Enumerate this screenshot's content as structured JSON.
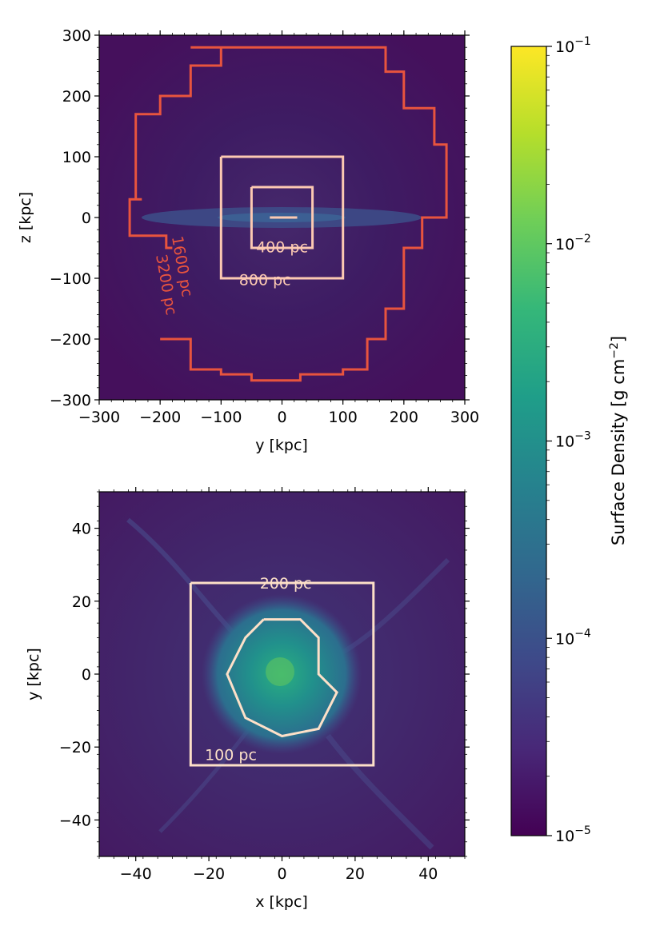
{
  "chart_data": [
    {
      "type": "heatmap",
      "panel": "top",
      "xlabel": "y  [kpc]",
      "ylabel": "z  [kpc]",
      "xlim": [
        -300,
        300
      ],
      "ylim": [
        -300,
        300
      ],
      "xticks": [
        -300,
        -200,
        -100,
        0,
        100,
        200,
        300
      ],
      "yticks": [
        -300,
        -200,
        -100,
        0,
        100,
        200,
        300
      ],
      "xtick_labels": [
        "−300",
        "−200",
        "−100",
        "0",
        "100",
        "200",
        "300"
      ],
      "ytick_labels": [
        "−300",
        "−200",
        "−100",
        "0",
        "100",
        "200",
        "300"
      ],
      "refinement_boundaries": [
        {
          "label": "400 pc",
          "color": "#fcc9b2",
          "points": [
            [
              -50,
              50
            ],
            [
              50,
              50
            ],
            [
              50,
              -50
            ],
            [
              -50,
              -50
            ],
            [
              -50,
              50
            ]
          ],
          "label_at": [
            0,
            -48
          ]
        },
        {
          "label": "800 pc",
          "color": "#fcc9b2",
          "points": [
            [
              -100,
              100
            ],
            [
              100,
              100
            ],
            [
              100,
              -100
            ],
            [
              -100,
              -100
            ],
            [
              -100,
              100
            ]
          ],
          "label_at": [
            -28,
            -102
          ]
        },
        {
          "label": "1600 pc",
          "color": "#e8543e",
          "label_at": [
            -172,
            -82
          ],
          "label_rotation": 80,
          "points": [
            [
              -150,
              280
            ],
            [
              -100,
              280
            ],
            [
              -100,
              280
            ],
            [
              170,
              280
            ],
            [
              170,
              240
            ],
            [
              200,
              240
            ],
            [
              200,
              180
            ],
            [
              250,
              180
            ],
            [
              250,
              120
            ],
            [
              270,
              120
            ],
            [
              270,
              0
            ],
            [
              230,
              0
            ],
            [
              230,
              -50
            ],
            [
              200,
              -50
            ],
            [
              200,
              -150
            ],
            [
              170,
              -150
            ],
            [
              170,
              -200
            ],
            [
              140,
              -200
            ],
            [
              140,
              -250
            ],
            [
              100,
              -250
            ],
            [
              100,
              -258
            ],
            [
              30,
              -258
            ],
            [
              30,
              -268
            ],
            [
              -50,
              -268
            ],
            [
              -50,
              -258
            ],
            [
              -100,
              -258
            ],
            [
              -100,
              -250
            ],
            [
              -150,
              -250
            ],
            [
              -150,
              -200
            ],
            [
              -200,
              -200
            ]
          ]
        },
        {
          "label": "3200 pc",
          "color": "#e8543e",
          "label_at": [
            -198,
            -112
          ],
          "label_rotation": 80,
          "points": [
            [
              -100,
              280
            ],
            [
              -100,
              250
            ],
            [
              -150,
              250
            ],
            [
              -150,
              200
            ],
            [
              -200,
              200
            ],
            [
              -200,
              170
            ],
            [
              -240,
              170
            ],
            [
              -240,
              30
            ],
            [
              -230,
              30
            ],
            [
              -230,
              30
            ],
            [
              -250,
              30
            ],
            [
              -250,
              -30
            ],
            [
              -190,
              -30
            ],
            [
              -190,
              -50
            ],
            [
              -180,
              -50
            ]
          ]
        },
        {
          "label": "",
          "color": "#fcc9b2",
          "points": [
            [
              -20,
              0
            ],
            [
              25,
              0
            ]
          ]
        }
      ]
    },
    {
      "type": "heatmap",
      "panel": "bottom",
      "xlabel": "x  [kpc]",
      "ylabel": "y  [kpc]",
      "xlim": [
        -50,
        50
      ],
      "ylim": [
        -50,
        50
      ],
      "xticks": [
        -40,
        -20,
        0,
        20,
        40
      ],
      "yticks": [
        -40,
        -20,
        0,
        20,
        40
      ],
      "xtick_labels": [
        "−40",
        "−20",
        "0",
        "20",
        "40"
      ],
      "ytick_labels": [
        "−40",
        "−20",
        "0",
        "20",
        "40"
      ],
      "refinement_boundaries": [
        {
          "label": "200 pc",
          "color": "#fde0c8",
          "points": [
            [
              -25,
              25
            ],
            [
              25,
              25
            ],
            [
              25,
              -25
            ],
            [
              -25,
              -25
            ],
            [
              -25,
              25
            ]
          ],
          "label_at": [
            1,
            25
          ]
        },
        {
          "label": "100 pc",
          "color": "#fde0c8",
          "points": [
            [
              -5,
              15
            ],
            [
              5,
              15
            ],
            [
              10,
              10
            ],
            [
              10,
              0
            ],
            [
              15,
              -5
            ],
            [
              10,
              -15
            ],
            [
              0,
              -17
            ],
            [
              -10,
              -12
            ],
            [
              -15,
              0
            ],
            [
              -10,
              10
            ],
            [
              -5,
              15
            ]
          ],
          "label_at": [
            -14,
            -22
          ]
        }
      ]
    }
  ],
  "colorbar": {
    "label": "Surface Density  [g cm",
    "label_exponent": "−2",
    "label_close": "]",
    "scale": "log",
    "range": [
      1e-05,
      0.1
    ],
    "tick_values": [
      1e-05,
      0.0001,
      0.001,
      0.01,
      0.1
    ],
    "tick_base": "10",
    "tick_exponents": [
      "−5",
      "−4",
      "−3",
      "−2",
      "−1"
    ],
    "colormap": "viridis",
    "colors": [
      "#440154",
      "#482878",
      "#3e4989",
      "#31688e",
      "#26828e",
      "#1f9e89",
      "#35b779",
      "#6ece58",
      "#b5de2b",
      "#fde725"
    ]
  }
}
